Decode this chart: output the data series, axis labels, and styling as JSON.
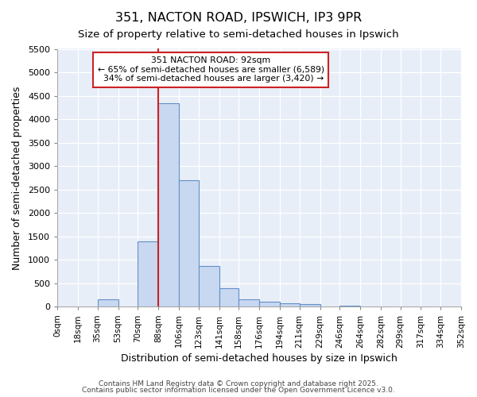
{
  "title": "351, NACTON ROAD, IPSWICH, IP3 9PR",
  "subtitle": "Size of property relative to semi-detached houses in Ipswich",
  "xlabel": "Distribution of semi-detached houses by size in Ipswich",
  "ylabel": "Number of semi-detached properties",
  "bin_labels": [
    "0sqm",
    "18sqm",
    "35sqm",
    "53sqm",
    "70sqm",
    "88sqm",
    "106sqm",
    "123sqm",
    "141sqm",
    "158sqm",
    "176sqm",
    "194sqm",
    "211sqm",
    "229sqm",
    "246sqm",
    "264sqm",
    "282sqm",
    "299sqm",
    "317sqm",
    "334sqm",
    "352sqm"
  ],
  "bin_edges": [
    0,
    18,
    35,
    53,
    70,
    88,
    106,
    123,
    141,
    158,
    176,
    194,
    211,
    229,
    246,
    264,
    282,
    299,
    317,
    334,
    352
  ],
  "bar_values": [
    0,
    0,
    155,
    0,
    1400,
    4340,
    2700,
    870,
    390,
    155,
    100,
    70,
    50,
    0,
    30,
    0,
    0,
    0,
    0,
    0
  ],
  "bar_color": "#c8d8f0",
  "bar_edge_color": "#6090c8",
  "property_label": "351 NACTON ROAD: 92sqm",
  "pct_smaller": 65,
  "pct_larger": 34,
  "count_smaller": 6589,
  "count_larger": 3420,
  "vline_x": 88,
  "vline_color": "#cc2222",
  "ylim": [
    0,
    5500
  ],
  "yticks": [
    0,
    500,
    1000,
    1500,
    2000,
    2500,
    3000,
    3500,
    4000,
    4500,
    5000,
    5500
  ],
  "bg_color": "#ffffff",
  "plot_bg_color": "#e8eef8",
  "footer1": "Contains HM Land Registry data © Crown copyright and database right 2025.",
  "footer2": "Contains public sector information licensed under the Open Government Licence v3.0."
}
